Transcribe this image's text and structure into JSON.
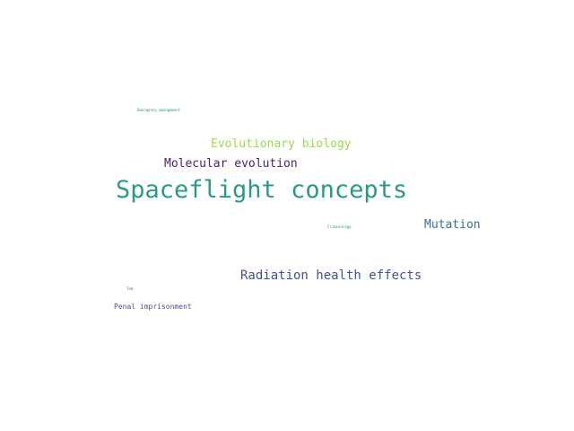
{
  "words": [
    {
      "text": "Emergency management",
      "color": "#2a8a8a"
    },
    {
      "text": "Evolutionary biology",
      "color": "#a0d848"
    },
    {
      "text": "Molecular evolution",
      "color": "#4a1f6a"
    },
    {
      "text": "Spaceflight concepts",
      "color": "#2a9a88"
    },
    {
      "text": "Criminology",
      "color": "#2a8a8a"
    },
    {
      "text": "Mutation",
      "color": "#3d6c8c"
    },
    {
      "text": "Radiation health effects",
      "color": "#3e5590"
    },
    {
      "text": "Tom",
      "color": "#2a7a8a"
    },
    {
      "text": "Penal imprisonment",
      "color": "#4a4e8e"
    }
  ]
}
